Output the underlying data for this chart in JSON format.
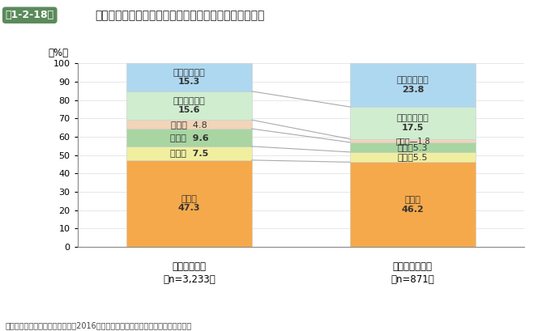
{
  "title_box": "第1-2-18図",
  "title_text": "休廃業・解散企業の業種分類（黒字企業・高収益企業）",
  "ylabel": "（%）",
  "footnote": "資料：（株）東京商工リサーチ「2016年「休廃業・解散企業」動向調査」再編加工",
  "categories": [
    "黒字廃業企業",
    "（n=3,233）",
    "高収益廃業企業",
    "（n=871）"
  ],
  "segments": [
    {
      "label": "建設業",
      "values": [
        47.3,
        46.2
      ],
      "color": "#F5A94A",
      "label_fmt": [
        "{} \n{}",
        "{}\n{}"
      ]
    },
    {
      "label": "製造業",
      "values": [
        7.5,
        5.5
      ],
      "color": "#F0EFA0"
    },
    {
      "label": "卸売業",
      "values": [
        9.6,
        5.3
      ],
      "color": "#A8D5A2"
    },
    {
      "label": "小売業",
      "values": [
        4.8,
        1.8
      ],
      "color": "#F2D4B8"
    },
    {
      "label": "サービス業他",
      "values": [
        15.6,
        17.5
      ],
      "color": "#D0EDD0"
    },
    {
      "label": "その他の業種",
      "values": [
        15.3,
        23.8
      ],
      "color": "#AED8F0"
    }
  ],
  "bar_width": 0.28,
  "bar_positions": [
    0.25,
    0.75
  ],
  "xlim": [
    0.0,
    1.0
  ],
  "ylim": [
    0,
    100
  ],
  "bg_color": "#FFFFFF",
  "grid_color": "#DDDDDD",
  "label_fontsize": 8,
  "title_fontsize": 10,
  "footnote_fontsize": 7,
  "title_box_color": "#5B8A5B",
  "title_box_text_color": "#FFFFFF",
  "connector_color": "#AAAAAA"
}
